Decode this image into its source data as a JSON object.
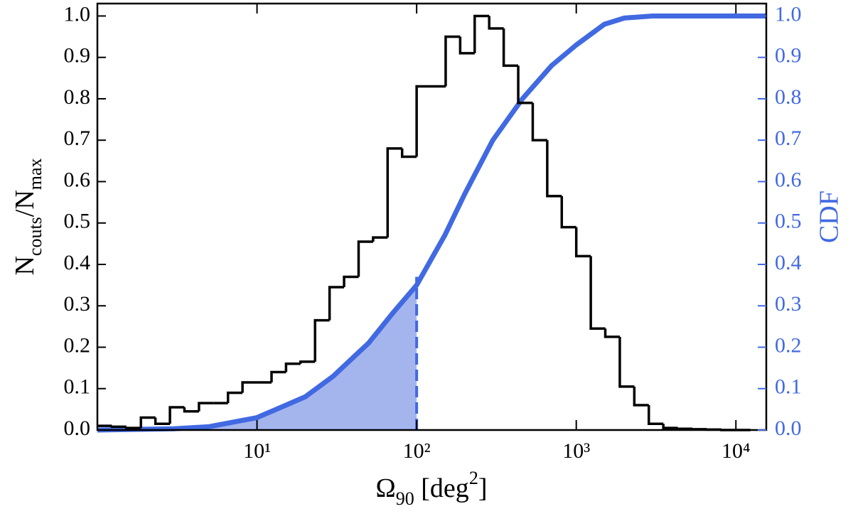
{
  "chart_data": {
    "type": "histogram",
    "xlabel": [
      {
        "text": "Ω"
      },
      {
        "text": "90",
        "shift": "sub"
      },
      {
        "text": " [deg"
      },
      {
        "text": "2",
        "shift": "sup"
      },
      {
        "text": "]"
      }
    ],
    "ylabel": [
      {
        "text": "N"
      },
      {
        "text": "couts",
        "shift": "sub"
      },
      {
        "text": "/N"
      },
      {
        "text": "max",
        "shift": "sub"
      }
    ],
    "y2label": "CDF",
    "xscale": "log",
    "xlim": [
      1,
      15500
    ],
    "xticks": [
      {
        "value": 10,
        "label": "10¹"
      },
      {
        "value": 100,
        "label": "10²"
      },
      {
        "value": 1000,
        "label": "10³"
      },
      {
        "value": 10000,
        "label": "10⁴"
      }
    ],
    "ylim": [
      0,
      1.03
    ],
    "yticks": [
      {
        "value": 0,
        "label": "0.0"
      },
      0.1,
      0.2,
      0.3,
      0.4,
      0.5,
      0.6,
      0.7,
      0.8,
      0.9,
      {
        "value": 1,
        "label": "1.0"
      }
    ],
    "y2lim": [
      0,
      1.03
    ],
    "y2ticks": [
      {
        "value": 0,
        "label": "0.0"
      },
      0.1,
      0.2,
      0.3,
      0.4,
      0.5,
      0.6,
      0.7,
      0.8,
      0.9,
      {
        "value": 1,
        "label": "1.0"
      }
    ],
    "color": "#000000",
    "bins": [
      1,
      1.233,
      1.52,
      1.874,
      2.31,
      2.848,
      3.511,
      4.329,
      5.337,
      6.579,
      8.111,
      10,
      12.33,
      15.2,
      18.74,
      23.1,
      28.48,
      35.11,
      43.29,
      53.37,
      65.79,
      81.11,
      100,
      123.3,
      152,
      187.4,
      231,
      284.8,
      351.1,
      432.9,
      533.7,
      657.9,
      811.1,
      1000,
      1233,
      1520,
      1874,
      2310,
      2848,
      3511,
      4329,
      5337,
      6579,
      8111,
      10000,
      12330
    ],
    "values": [
      0.01,
      0.008,
      0.005,
      0.03,
      0.015,
      0.055,
      0.045,
      0.065,
      0.065,
      0.09,
      0.115,
      0.115,
      0.14,
      0.16,
      0.165,
      0.265,
      0.345,
      0.37,
      0.455,
      0.465,
      0.68,
      0.66,
      0.83,
      0.83,
      0.95,
      0.91,
      1.0,
      0.97,
      0.88,
      0.79,
      0.7,
      0.565,
      0.49,
      0.42,
      0.245,
      0.225,
      0.105,
      0.06,
      0.015,
      0.005,
      0.003,
      0.002,
      0.001,
      0,
      0
    ],
    "series": [
      {
        "type": "line",
        "axis": "y2",
        "color": "#4169e1",
        "fill_color": "#a4b5ee",
        "x": [
          1,
          3,
          5,
          10,
          20,
          30,
          50,
          70,
          100,
          150,
          200,
          300,
          460,
          700,
          1000,
          1500,
          2000,
          3000,
          15500
        ],
        "values": [
          0,
          0.003,
          0.008,
          0.03,
          0.08,
          0.13,
          0.21,
          0.28,
          0.35,
          0.47,
          0.57,
          0.7,
          0.8,
          0.88,
          0.93,
          0.98,
          0.995,
          1.0,
          1.0
        ]
      }
    ],
    "threshold": {
      "x": 100,
      "y": 0.37
    }
  }
}
